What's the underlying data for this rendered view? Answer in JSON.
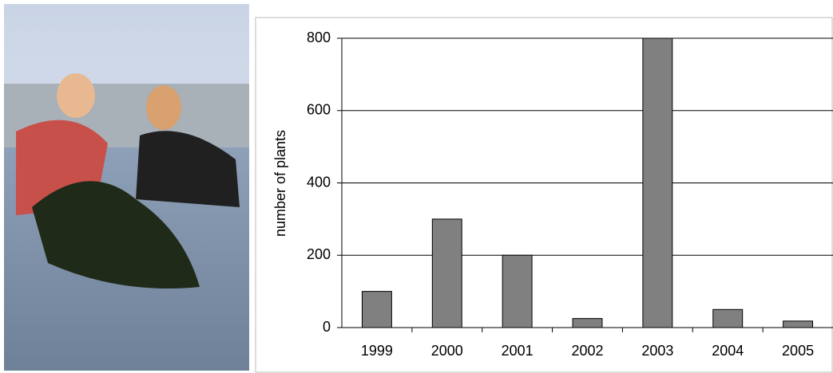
{
  "chart_data": {
    "type": "bar",
    "y_label": "number of plants",
    "categories": [
      "1999",
      "2000",
      "2001",
      "2002",
      "2003",
      "2004",
      "2005"
    ],
    "values": [
      100,
      300,
      200,
      25,
      800,
      50,
      18
    ],
    "color": "#808080",
    "ylim": [
      0,
      800
    ],
    "yticks": [
      0,
      200,
      400,
      600,
      800
    ],
    "grid": true
  }
}
